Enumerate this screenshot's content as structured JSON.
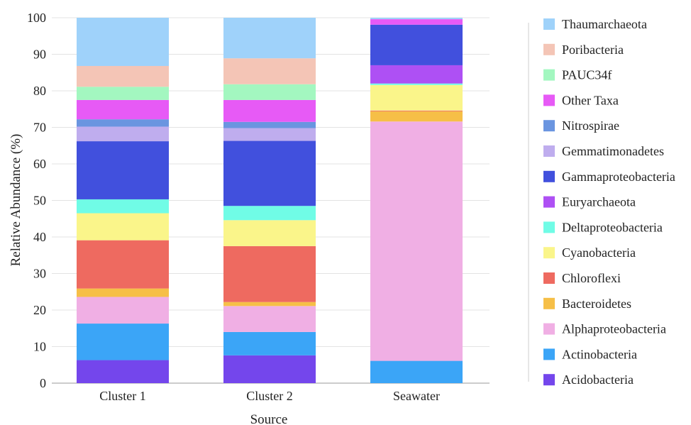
{
  "chart_data": {
    "type": "bar",
    "stacked": true,
    "xlabel": "Source",
    "ylabel": "Relative Abundance (%)",
    "ylim": [
      0,
      100
    ],
    "yticks": [
      0,
      10,
      20,
      30,
      40,
      50,
      60,
      70,
      80,
      90,
      100
    ],
    "grid": true,
    "legend_position": "right",
    "categories": [
      "Cluster 1",
      "Cluster 2",
      "Seawater"
    ],
    "series": [
      {
        "name": "Acidobacteria",
        "color": "#7446EC",
        "values": [
          6.3,
          7.6,
          0
        ]
      },
      {
        "name": "Actinobacteria",
        "color": "#3BA5F7",
        "values": [
          10.0,
          6.4,
          6.1
        ]
      },
      {
        "name": "Alphaproteobacteria",
        "color": "#F0AFE4",
        "values": [
          7.3,
          7.1,
          65.5
        ]
      },
      {
        "name": "Bacteroidetes",
        "color": "#F6BF47",
        "values": [
          2.3,
          1.1,
          2.8
        ]
      },
      {
        "name": "Chloroflexi",
        "color": "#EE6A60",
        "values": [
          13.2,
          15.3,
          0.2
        ]
      },
      {
        "name": "Cyanobacteria",
        "color": "#FAF58A",
        "values": [
          7.4,
          7.1,
          7.0
        ]
      },
      {
        "name": "Deltaproteobacteria",
        "color": "#70FCE6",
        "values": [
          3.8,
          3.9,
          0.4
        ]
      },
      {
        "name": "Euryarchaeota",
        "color": "#AE50F4",
        "values": [
          0,
          0,
          5.0
        ]
      },
      {
        "name": "Gammaproteobacteria",
        "color": "#4150DD",
        "values": [
          15.9,
          17.8,
          11.1
        ]
      },
      {
        "name": "Gemmatimonadetes",
        "color": "#BFADEE",
        "values": [
          4.0,
          3.5,
          0
        ]
      },
      {
        "name": "Nitrospirae",
        "color": "#6A95E0",
        "values": [
          2.0,
          1.7,
          0
        ]
      },
      {
        "name": "Other Taxa",
        "color": "#E75AF6",
        "values": [
          5.3,
          6.0,
          1.5
        ]
      },
      {
        "name": "PAUC34f",
        "color": "#A3F7C0",
        "values": [
          3.6,
          4.3,
          0
        ]
      },
      {
        "name": "Poribacteria",
        "color": "#F4C5B6",
        "values": [
          5.7,
          7.1,
          0
        ]
      },
      {
        "name": "Thaumarchaeota",
        "color": "#9FD2FA",
        "values": [
          13.2,
          11.1,
          0.4
        ]
      }
    ]
  }
}
